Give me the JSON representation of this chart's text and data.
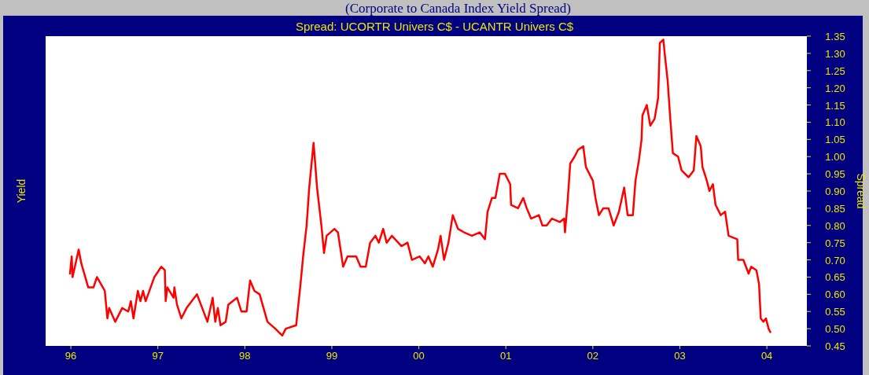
{
  "chart_data": {
    "type": "line",
    "title": "(Corporate to Canada Index Yield Spread)",
    "subtitle": "Spread: UCORTR Univers C$  -  UCANTR Univers C$",
    "ylabel": "Yield",
    "y2label": "Spread",
    "xlim": [
      1995.71,
      2004.46
    ],
    "xticks": [
      {
        "value": 1996,
        "label": "96"
      },
      {
        "value": 1997,
        "label": "97"
      },
      {
        "value": 1998,
        "label": "98"
      },
      {
        "value": 1999,
        "label": "99"
      },
      {
        "value": 2000,
        "label": "00"
      },
      {
        "value": 2001,
        "label": "01"
      },
      {
        "value": 2002,
        "label": "02"
      },
      {
        "value": 2003,
        "label": "03"
      },
      {
        "value": 2004,
        "label": "04"
      }
    ],
    "y2lim": [
      0.45,
      1.35
    ],
    "y2ticks": [
      {
        "value": 0.45,
        "label": "0.45"
      },
      {
        "value": 0.5,
        "label": "0.50"
      },
      {
        "value": 0.55,
        "label": "0.55"
      },
      {
        "value": 0.6,
        "label": "0.60"
      },
      {
        "value": 0.65,
        "label": "0.65"
      },
      {
        "value": 0.7,
        "label": "0.70"
      },
      {
        "value": 0.75,
        "label": "0.75"
      },
      {
        "value": 0.8,
        "label": "0.80"
      },
      {
        "value": 0.85,
        "label": "0.85"
      },
      {
        "value": 0.9,
        "label": "0.90"
      },
      {
        "value": 0.95,
        "label": "0.95"
      },
      {
        "value": 1,
        "label": "1.00"
      },
      {
        "value": 1.05,
        "label": "1.05"
      },
      {
        "value": 1.1,
        "label": "1.10"
      },
      {
        "value": 1.15,
        "label": "1.15"
      },
      {
        "value": 1.2,
        "label": "1.20"
      },
      {
        "value": 1.25,
        "label": "1.25"
      },
      {
        "value": 1.3,
        "label": "1.30"
      },
      {
        "value": 1.35,
        "label": "1.35"
      }
    ],
    "grid": false,
    "marker": "none",
    "line_style": "solid",
    "series": [
      {
        "color": "#ff0000",
        "axis": "y2",
        "x": [
          1995.99,
          1996.01,
          1996.02,
          1996.09,
          1996.12,
          1996.2,
          1996.26,
          1996.3,
          1996.39,
          1996.42,
          1996.44,
          1996.51,
          1996.59,
          1996.66,
          1996.69,
          1996.72,
          1996.77,
          1996.8,
          1996.83,
          1996.86,
          1996.96,
          1997.04,
          1997.08,
          1997.09,
          1997.11,
          1997.18,
          1997.19,
          1997.22,
          1997.27,
          1997.33,
          1997.39,
          1997.45,
          1997.48,
          1997.57,
          1997.63,
          1997.66,
          1997.69,
          1997.72,
          1997.78,
          1997.81,
          1997.91,
          1997.96,
          1998.02,
          1998.06,
          1998.11,
          1998.17,
          1998.26,
          1998.35,
          1998.43,
          1998.47,
          1998.59,
          1998.64,
          1998.67,
          1998.71,
          1998.74,
          1998.79,
          1998.83,
          1998.88,
          1998.91,
          1998.94,
          1999.03,
          1999.07,
          1999.13,
          1999.18,
          1999.28,
          1999.33,
          1999.39,
          1999.44,
          1999.5,
          1999.54,
          1999.59,
          1999.63,
          1999.69,
          1999.8,
          1999.87,
          1999.92,
          2000.01,
          2000.07,
          2000.11,
          2000.16,
          2000.22,
          2000.25,
          2000.29,
          2000.34,
          2000.39,
          2000.45,
          2000.52,
          2000.61,
          2000.7,
          2000.76,
          2000.79,
          2000.84,
          2000.88,
          2000.93,
          2000.99,
          2001.05,
          2001.06,
          2001.14,
          2001.2,
          2001.24,
          2001.29,
          2001.38,
          2001.42,
          2001.47,
          2001.53,
          2001.62,
          2001.67,
          2001.68,
          2001.71,
          2001.74,
          2001.79,
          2001.83,
          2001.89,
          2001.92,
          2002.0,
          2002.03,
          2002.07,
          2002.12,
          2002.18,
          2002.24,
          2002.3,
          2002.36,
          2002.4,
          2002.46,
          2002.49,
          2002.53,
          2002.56,
          2002.57,
          2002.62,
          2002.66,
          2002.71,
          2002.75,
          2002.77,
          2002.81,
          2002.83,
          2002.86,
          2002.89,
          2002.92,
          2002.98,
          2003.02,
          2003.1,
          2003.16,
          2003.19,
          2003.24,
          2003.26,
          2003.31,
          2003.34,
          2003.38,
          2003.41,
          2003.47,
          2003.52,
          2003.56,
          2003.66,
          2003.67,
          2003.73,
          2003.79,
          2003.82,
          2003.88,
          2003.91,
          2003.93,
          2003.96,
          2003.99,
          2004.02,
          2004.04
        ],
        "values": [
          0.66,
          0.71,
          0.65,
          0.73,
          0.69,
          0.62,
          0.62,
          0.65,
          0.61,
          0.53,
          0.56,
          0.52,
          0.56,
          0.55,
          0.58,
          0.53,
          0.61,
          0.58,
          0.61,
          0.58,
          0.65,
          0.68,
          0.67,
          0.58,
          0.62,
          0.59,
          0.62,
          0.57,
          0.53,
          0.56,
          0.58,
          0.6,
          0.58,
          0.52,
          0.59,
          0.52,
          0.56,
          0.51,
          0.52,
          0.57,
          0.59,
          0.55,
          0.55,
          0.64,
          0.61,
          0.6,
          0.52,
          0.5,
          0.48,
          0.5,
          0.51,
          0.63,
          0.71,
          0.8,
          0.91,
          1.04,
          0.91,
          0.8,
          0.72,
          0.77,
          0.79,
          0.78,
          0.68,
          0.71,
          0.71,
          0.68,
          0.68,
          0.75,
          0.77,
          0.75,
          0.79,
          0.75,
          0.77,
          0.74,
          0.75,
          0.7,
          0.71,
          0.69,
          0.71,
          0.68,
          0.73,
          0.77,
          0.7,
          0.75,
          0.83,
          0.79,
          0.78,
          0.77,
          0.78,
          0.76,
          0.84,
          0.88,
          0.88,
          0.95,
          0.95,
          0.92,
          0.86,
          0.85,
          0.88,
          0.85,
          0.82,
          0.83,
          0.8,
          0.8,
          0.82,
          0.81,
          0.82,
          0.78,
          0.87,
          0.98,
          1.0,
          1.02,
          1.03,
          0.97,
          0.93,
          0.88,
          0.83,
          0.85,
          0.85,
          0.8,
          0.84,
          0.91,
          0.83,
          0.83,
          0.93,
          0.99,
          1.05,
          1.12,
          1.15,
          1.09,
          1.11,
          1.17,
          1.33,
          1.34,
          1.29,
          1.22,
          1.11,
          1.01,
          1.0,
          0.96,
          0.94,
          0.96,
          1.06,
          1.03,
          0.97,
          0.93,
          0.9,
          0.92,
          0.86,
          0.83,
          0.84,
          0.77,
          0.76,
          0.7,
          0.7,
          0.66,
          0.68,
          0.67,
          0.63,
          0.53,
          0.52,
          0.53,
          0.5,
          0.49
        ]
      }
    ]
  }
}
